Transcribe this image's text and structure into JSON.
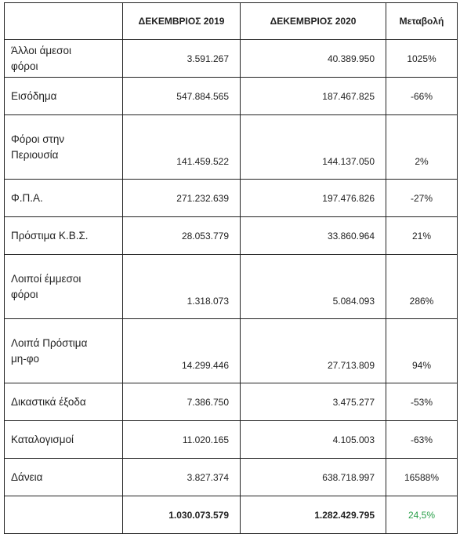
{
  "table": {
    "header": [
      "ΔΕΚΕΜΒΡΙΟΣ 2019",
      "ΔΕΚΕΜΒΡΙΟΣ 2020",
      "Μεταβολή"
    ],
    "rows": [
      [
        "Άλλοι άμεσοι φόροι",
        "3.591.267",
        "40.389.950",
        "1025%"
      ],
      [
        "Εισόδημα",
        "547.884.565",
        "187.467.825",
        "-66%"
      ],
      [
        "Φόροι στην Περιουσία",
        "141.459.522",
        "144.137.050",
        "2%"
      ],
      [
        "Φ.Π.Α.",
        "271.232.639",
        "197.476.826",
        "-27%"
      ],
      [
        "Πρόστιμα Κ.Β.Σ.",
        "28.053.779",
        "33.860.964",
        "21%"
      ],
      [
        "Λοιποί έμμεσοι φόροι",
        "1.318.073",
        "5.084.093",
        "286%"
      ],
      [
        "Λοιπά Πρόστιμα μη-φο",
        "14.299.446",
        "27.713.809",
        "94%"
      ],
      [
        "Δικαστικά έξοδα",
        "7.386.750",
        "3.475.277",
        "-53%"
      ],
      [
        "Καταλογισμοί",
        "11.020.165",
        "4.105.003",
        "-63%"
      ],
      [
        "Δάνεια",
        "3.827.374",
        "638.718.997",
        "16588%"
      ]
    ],
    "totals": [
      "1.030.073.579",
      "1.282.429.795",
      "24,5%"
    ]
  }
}
